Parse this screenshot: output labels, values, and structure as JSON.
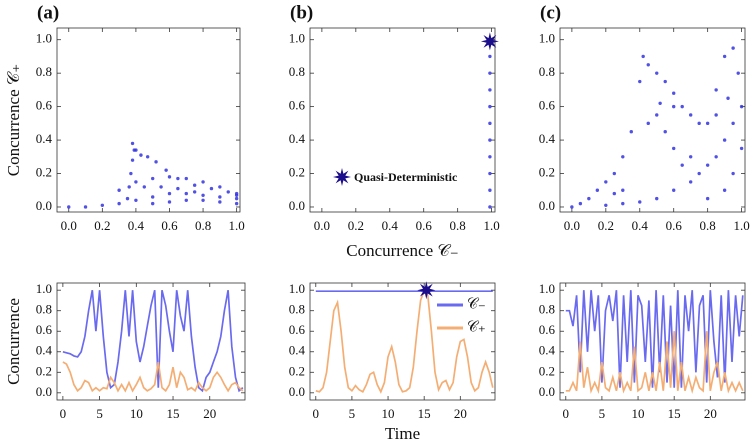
{
  "chart_data": [
    {
      "type": "scatter",
      "panel_label": "(a)",
      "ylabel": "Concurrence 𝒞₊",
      "color": "#3232e2",
      "x": [
        0.35,
        0.36,
        0.37,
        0.38,
        0.39,
        0.38,
        0.4,
        0.43,
        0.47,
        0.52,
        0.58,
        0.65,
        0.75,
        0.85,
        0.95,
        1.0,
        0.3,
        0.4,
        0.5,
        0.6,
        0.7,
        0.8,
        0.9,
        1.0,
        0,
        0.1,
        0.2,
        0.3,
        0.4,
        0.5,
        0.6,
        0.7,
        0.8,
        0.9,
        1.0,
        0.5,
        0.6,
        0.7,
        0.8,
        0.9,
        1.0,
        0.45,
        0.55,
        0.65,
        0.75
      ],
      "y": [
        0.05,
        0.12,
        0.2,
        0.28,
        0.34,
        0.38,
        0.34,
        0.31,
        0.3,
        0.27,
        0.22,
        0.17,
        0.13,
        0.11,
        0.09,
        0.07,
        0.1,
        0.15,
        0.17,
        0.18,
        0.17,
        0.15,
        0.12,
        0.08,
        0,
        0,
        0.01,
        0.02,
        0.04,
        0.06,
        0.08,
        0.08,
        0.07,
        0.06,
        0.05,
        0.02,
        0.03,
        0.04,
        0.04,
        0.03,
        0.02,
        0.12,
        0.12,
        0.11,
        0.09
      ],
      "xlim": [
        -0.07,
        1.02
      ],
      "ylim": [
        -0.03,
        1.07
      ],
      "xticks": [
        {
          "value": 0,
          "label": "0.0"
        },
        {
          "value": 0.2,
          "label": "0.2"
        },
        {
          "value": 0.4,
          "label": "0.4"
        },
        {
          "value": 0.6,
          "label": "0.6"
        },
        {
          "value": 0.8,
          "label": "0.8"
        },
        {
          "value": 1,
          "label": "1.0"
        }
      ],
      "yticks": [
        {
          "value": 0,
          "label": "0.0"
        },
        {
          "value": 0.2,
          "label": "0.2"
        },
        {
          "value": 0.4,
          "label": "0.4"
        },
        {
          "value": 0.6,
          "label": "0.6"
        },
        {
          "value": 0.8,
          "label": "0.8"
        },
        {
          "value": 1,
          "label": "1.0"
        }
      ]
    },
    {
      "type": "scatter",
      "panel_label": "(b)",
      "xlabel": "Concurrence 𝒞₋",
      "color": "#3232e2",
      "x": [
        0.99,
        0.99,
        0.99,
        0.99,
        0.99,
        0.99,
        0.99,
        0.99,
        0.99,
        0.99,
        0.99
      ],
      "y": [
        0,
        0.1,
        0.2,
        0.3,
        0.4,
        0.5,
        0.6,
        0.7,
        0.8,
        0.9,
        1.0
      ],
      "highlight": {
        "x": 0.99,
        "y": 0.99
      },
      "highlight_color": "#1c0e8a",
      "annotation": "Quasi-Deterministic",
      "xlim": [
        -0.07,
        1.02
      ],
      "ylim": [
        -0.03,
        1.07
      ],
      "xticks": [
        {
          "value": 0,
          "label": "0.0"
        },
        {
          "value": 0.2,
          "label": "0.2"
        },
        {
          "value": 0.4,
          "label": "0.4"
        },
        {
          "value": 0.6,
          "label": "0.6"
        },
        {
          "value": 0.8,
          "label": "0.8"
        },
        {
          "value": 1,
          "label": "1.0"
        }
      ],
      "yticks": [
        {
          "value": 0,
          "label": "0.0"
        },
        {
          "value": 0.2,
          "label": "0.2"
        },
        {
          "value": 0.4,
          "label": "0.4"
        },
        {
          "value": 0.6,
          "label": "0.6"
        },
        {
          "value": 0.8,
          "label": "0.8"
        },
        {
          "value": 1,
          "label": "1.0"
        }
      ]
    },
    {
      "type": "scatter",
      "panel_label": "(c)",
      "color": "#3232e2",
      "x": [
        0,
        0.05,
        0.1,
        0.15,
        0.2,
        0.25,
        0.3,
        0.35,
        0.4,
        0.42,
        0.45,
        0.5,
        0.55,
        0.6,
        0.65,
        0.7,
        0.75,
        0.8,
        0.85,
        0.9,
        0.95,
        0.98,
        1.0,
        0.95,
        0.9,
        0.85,
        0.8,
        0.75,
        0.7,
        0.6,
        0.5,
        0.4,
        0.3,
        0.2,
        0.5,
        0.55,
        0.6,
        0.65,
        0.7,
        0.85,
        0.92,
        1.0,
        0.95,
        0.9,
        0.8,
        0.6,
        0.52,
        0.45,
        0.3,
        0.25
      ],
      "y": [
        0,
        0.02,
        0.05,
        0.1,
        0.15,
        0.2,
        0.3,
        0.45,
        0.75,
        0.9,
        0.85,
        0.8,
        0.75,
        0.68,
        0.6,
        0.55,
        0.5,
        0.5,
        0.7,
        0.9,
        0.95,
        0.8,
        0.6,
        0.5,
        0.4,
        0.3,
        0.25,
        0.2,
        0.15,
        0.1,
        0.05,
        0.03,
        0.02,
        0.01,
        0.55,
        0.45,
        0.35,
        0.25,
        0.3,
        0.55,
        0.65,
        0.35,
        0.2,
        0.1,
        0.05,
        0.6,
        0.62,
        0.5,
        0.1,
        0.08
      ],
      "xlim": [
        -0.07,
        1.02
      ],
      "ylim": [
        -0.03,
        1.07
      ],
      "xticks": [
        {
          "value": 0,
          "label": "0.0"
        },
        {
          "value": 0.2,
          "label": "0.2"
        },
        {
          "value": 0.4,
          "label": "0.4"
        },
        {
          "value": 0.6,
          "label": "0.6"
        },
        {
          "value": 0.8,
          "label": "0.8"
        },
        {
          "value": 1,
          "label": "1.0"
        }
      ],
      "yticks": [
        {
          "value": 0,
          "label": "0.0"
        },
        {
          "value": 0.2,
          "label": "0.2"
        },
        {
          "value": 0.4,
          "label": "0.4"
        },
        {
          "value": 0.6,
          "label": "0.6"
        },
        {
          "value": 0.8,
          "label": "0.8"
        },
        {
          "value": 1,
          "label": "1.0"
        }
      ]
    },
    {
      "type": "line",
      "ylabel": "Concurrence",
      "x": [
        0,
        0.5,
        1,
        1.5,
        2,
        2.5,
        3,
        3.5,
        4,
        4.5,
        5,
        5.5,
        6,
        6.5,
        7,
        7.5,
        8,
        8.5,
        9,
        9.5,
        10,
        10.5,
        11,
        11.5,
        12,
        12.5,
        13,
        13.5,
        14,
        14.5,
        15,
        15.5,
        16,
        16.5,
        17,
        17.5,
        18,
        18.5,
        19,
        19.5,
        20,
        20.5,
        21,
        21.5,
        22,
        22.5,
        23,
        23.5,
        24,
        24.5
      ],
      "series": [
        {
          "color": "#6a6af0",
          "values": [
            0.4,
            0.39,
            0.38,
            0.36,
            0.35,
            0.4,
            0.55,
            0.8,
            1.0,
            0.6,
            1.0,
            0.55,
            0.2,
            0.05,
            0.08,
            0.3,
            0.6,
            1.0,
            0.55,
            1.0,
            0.5,
            0.3,
            0.45,
            0.65,
            0.85,
            1.0,
            0.05,
            1.0,
            0.85,
            0.6,
            0.4,
            1.0,
            0.75,
            0.6,
            1.0,
            0.55,
            0.25,
            0.05,
            0.02,
            0.15,
            0.2,
            0.3,
            0.4,
            0.55,
            0.8,
            1.0,
            0.45,
            0.15,
            0.02,
            0.05
          ]
        },
        {
          "color": "#f4ae74",
          "values": [
            0.3,
            0.28,
            0.2,
            0.08,
            0.02,
            0.05,
            0.12,
            0.1,
            0.02,
            0.05,
            0.02,
            0.05,
            0.04,
            0.15,
            0.1,
            0.02,
            0.08,
            0.02,
            0.1,
            0.02,
            0.08,
            0.15,
            0.05,
            0.02,
            0.04,
            0.08,
            0.3,
            0.05,
            0.02,
            0.08,
            0.25,
            0.05,
            0.2,
            0.15,
            0.03,
            0.05,
            0.02,
            0.1,
            0.05,
            0.02,
            0.05,
            0.15,
            0.2,
            0.15,
            0.08,
            0.02,
            0.08,
            0.1,
            0.05,
            0.02
          ]
        }
      ],
      "xlim": [
        -0.8,
        24.8
      ],
      "ylim": [
        -0.07,
        1.07
      ],
      "xticks": [
        0,
        5,
        10,
        15,
        20
      ],
      "yticks": [
        {
          "value": 0,
          "label": "0.0"
        },
        {
          "value": 0.2,
          "label": "0.2"
        },
        {
          "value": 0.4,
          "label": "0.4"
        },
        {
          "value": 0.6,
          "label": "0.6"
        },
        {
          "value": 0.8,
          "label": "0.8"
        },
        {
          "value": 1,
          "label": "1.0"
        }
      ]
    },
    {
      "type": "line",
      "xlabel": "Time",
      "x": [
        0,
        0.5,
        1,
        1.5,
        2,
        2.5,
        3,
        3.5,
        4,
        4.5,
        5,
        5.5,
        6,
        6.5,
        7,
        7.5,
        8,
        8.5,
        9,
        9.5,
        10,
        10.5,
        11,
        11.5,
        12,
        12.5,
        13,
        13.5,
        14,
        14.5,
        15,
        15.5,
        16,
        16.5,
        17,
        17.5,
        18,
        18.5,
        19,
        19.5,
        20,
        20.5,
        21,
        21.5,
        22,
        22.5,
        23,
        23.5,
        24,
        24.5
      ],
      "series": [
        {
          "name": "𝒞₋",
          "color": "#6a6af0",
          "values": [
            0.99,
            0.99,
            0.99,
            0.99,
            0.99,
            0.99,
            0.99,
            0.99,
            0.99,
            0.99,
            0.99,
            0.99,
            0.99,
            0.99,
            0.99,
            0.99,
            0.99,
            0.99,
            0.99,
            0.99,
            0.99,
            0.99,
            0.99,
            0.99,
            0.99,
            0.99,
            0.99,
            0.99,
            0.99,
            0.99,
            0.99,
            0.99,
            0.99,
            0.99,
            0.99,
            0.99,
            0.99,
            0.99,
            0.99,
            0.99,
            0.99,
            0.99,
            0.99,
            0.99,
            0.99,
            0.99,
            0.99,
            0.99,
            0.99,
            0.99
          ]
        },
        {
          "name": "𝒞₊",
          "color": "#f4ae74",
          "values": [
            0.02,
            0.01,
            0.05,
            0.2,
            0.5,
            0.8,
            0.88,
            0.6,
            0.25,
            0.05,
            0.02,
            0.07,
            0.03,
            0.01,
            0.08,
            0.18,
            0.2,
            0.08,
            0.01,
            0.1,
            0.35,
            0.45,
            0.3,
            0.08,
            0.01,
            0.02,
            0.05,
            0.25,
            0.6,
            0.9,
            1.0,
            0.95,
            0.6,
            0.2,
            0.03,
            0.1,
            0.12,
            0.03,
            0.1,
            0.35,
            0.5,
            0.52,
            0.35,
            0.1,
            0.02,
            0.05,
            0.2,
            0.3,
            0.2,
            0.05
          ]
        }
      ],
      "highlight": {
        "x": 15.3,
        "y": 1.0
      },
      "highlight_color": "#1c0e8a",
      "xlim": [
        -0.8,
        24.8
      ],
      "ylim": [
        -0.07,
        1.07
      ],
      "xticks": [
        0,
        5,
        10,
        15,
        20
      ],
      "yticks": [
        {
          "value": 0,
          "label": "0.0"
        },
        {
          "value": 0.2,
          "label": "0.2"
        },
        {
          "value": 0.4,
          "label": "0.4"
        },
        {
          "value": 0.6,
          "label": "0.6"
        },
        {
          "value": 0.8,
          "label": "0.8"
        },
        {
          "value": 1,
          "label": "1.0"
        }
      ]
    },
    {
      "type": "line",
      "x": [
        0,
        0.5,
        1,
        1.5,
        2,
        2.5,
        3,
        3.5,
        4,
        4.5,
        5,
        5.5,
        6,
        6.5,
        7,
        7.5,
        8,
        8.5,
        9,
        9.5,
        10,
        10.5,
        11,
        11.5,
        12,
        12.5,
        13,
        13.5,
        14,
        14.5,
        15,
        15.5,
        16,
        16.5,
        17,
        17.5,
        18,
        18.5,
        19,
        19.5,
        20,
        20.5,
        21,
        21.5,
        22,
        22.5,
        23,
        23.5,
        24,
        24.5
      ],
      "series": [
        {
          "color": "#6a6af0",
          "values": [
            0.8,
            0.8,
            0.65,
            0.95,
            0.2,
            1.0,
            0.4,
            1.0,
            0.6,
            0.95,
            0.1,
            0.8,
            0.95,
            0.7,
            1.0,
            0.05,
            0.95,
            0.3,
            1.0,
            0.1,
            0.95,
            0.85,
            0.3,
            0.9,
            0.05,
            1.0,
            0.2,
            0.95,
            0.1,
            0.85,
            0.05,
            1.0,
            0.05,
            0.95,
            0.6,
            1.0,
            0.2,
            0.85,
            0.95,
            0.1,
            1.0,
            0.5,
            0.15,
            0.95,
            0.1,
            1.0,
            0.3,
            0.95,
            0.55,
            0.95
          ]
        },
        {
          "color": "#f4ae74",
          "values": [
            0.02,
            0.02,
            0.1,
            0.02,
            0.5,
            0.05,
            0.25,
            0.02,
            0.1,
            0.02,
            0.3,
            0.05,
            0.02,
            0.15,
            0.02,
            0.2,
            0.02,
            0.1,
            0.02,
            0.45,
            0.02,
            0.05,
            0.2,
            0.02,
            0.2,
            0.02,
            0.3,
            0.02,
            0.5,
            0.05,
            0.6,
            0.02,
            0.3,
            0.02,
            0.15,
            0.02,
            0.15,
            0.05,
            0.02,
            0.6,
            0.02,
            0.2,
            0.3,
            0.02,
            0.2,
            0.02,
            0.1,
            0.02,
            0.1,
            0.02
          ]
        }
      ],
      "xlim": [
        -0.8,
        24.8
      ],
      "ylim": [
        -0.07,
        1.07
      ],
      "xticks": [
        0,
        5,
        10,
        15,
        20
      ],
      "yticks": [
        {
          "value": 0,
          "label": "0.0"
        },
        {
          "value": 0.2,
          "label": "0.2"
        },
        {
          "value": 0.4,
          "label": "0.4"
        },
        {
          "value": 0.6,
          "label": "0.6"
        },
        {
          "value": 0.8,
          "label": "0.8"
        },
        {
          "value": 1,
          "label": "1.0"
        }
      ]
    }
  ]
}
